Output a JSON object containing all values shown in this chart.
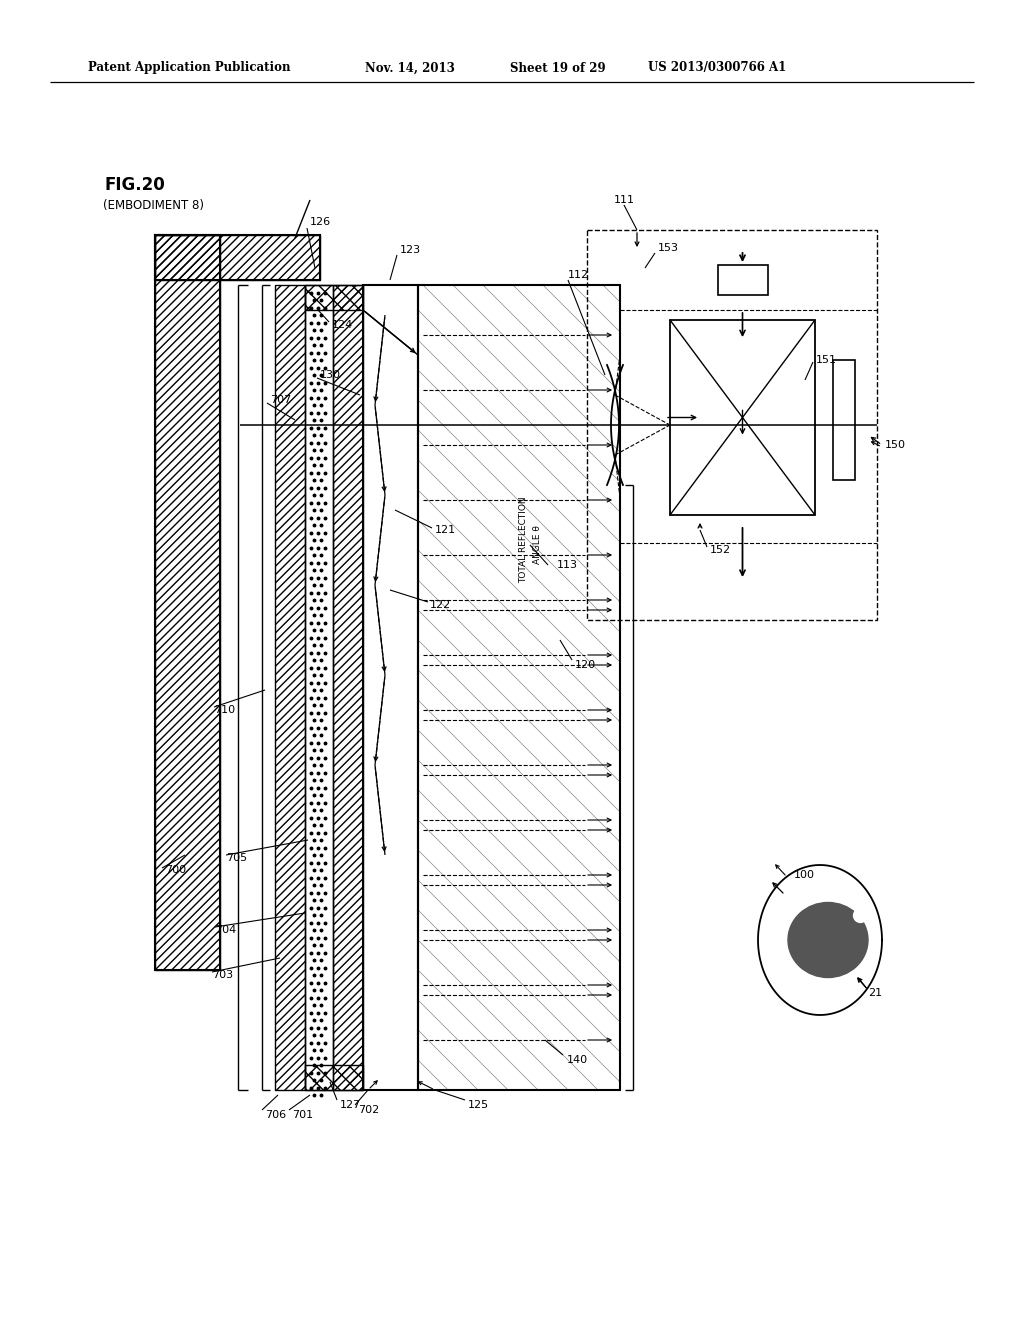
{
  "bg_color": "#ffffff",
  "header_text": "Patent Application Publication",
  "header_date": "Nov. 14, 2013",
  "header_sheet": "Sheet 19 of 29",
  "header_patent": "US 2013/0300766 A1",
  "fig_label": "FIG.20",
  "fig_sublabel": "(EMBODIMENT 8)"
}
